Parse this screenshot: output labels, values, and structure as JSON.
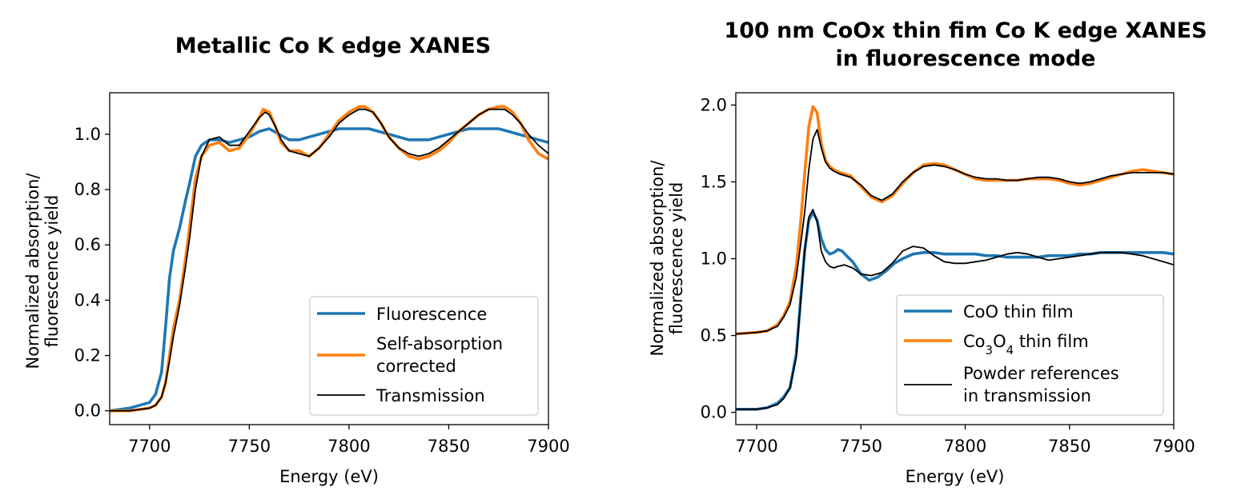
{
  "colors": {
    "fluorescence": "#1f77b4",
    "orange": "#ff7f0e",
    "black": "#000000"
  },
  "chart_data": [
    {
      "type": "line",
      "title_lines": [
        "Metallic Co K edge XANES"
      ],
      "xlabel": "Energy (eV)",
      "ylabel_lines": [
        "Normalized absorption/",
        "fluorescence yield"
      ],
      "xlim": [
        7680,
        7900
      ],
      "ylim": [
        -0.05,
        1.15
      ],
      "xticks": [
        7700,
        7750,
        7800,
        7850,
        7900
      ],
      "xtick_labels": [
        "7700",
        "7750",
        "7800",
        "7850",
        "7900"
      ],
      "yticks": [
        0.0,
        0.2,
        0.4,
        0.6,
        0.8,
        1.0
      ],
      "ytick_labels": [
        "0.0",
        "0.2",
        "0.4",
        "0.6",
        "0.8",
        "1.0"
      ],
      "grid": false,
      "legend_placement": "lower-right",
      "series": [
        {
          "name_lines": [
            "Fluorescence"
          ],
          "color": "#1f77b4",
          "width": "thick",
          "x": [
            7680,
            7690,
            7695,
            7700,
            7703,
            7706,
            7708,
            7710,
            7712,
            7715,
            7718,
            7720,
            7723,
            7726,
            7730,
            7735,
            7740,
            7745,
            7750,
            7755,
            7760,
            7765,
            7770,
            7775,
            7780,
            7785,
            7790,
            7795,
            7800,
            7805,
            7810,
            7815,
            7820,
            7825,
            7830,
            7835,
            7840,
            7845,
            7850,
            7855,
            7860,
            7865,
            7870,
            7875,
            7880,
            7885,
            7890,
            7895,
            7900
          ],
          "y": [
            0.0,
            0.01,
            0.02,
            0.03,
            0.06,
            0.14,
            0.3,
            0.48,
            0.58,
            0.66,
            0.76,
            0.82,
            0.92,
            0.96,
            0.98,
            0.98,
            0.97,
            0.98,
            0.99,
            1.01,
            1.02,
            1.0,
            0.98,
            0.98,
            0.99,
            1.0,
            1.01,
            1.02,
            1.02,
            1.02,
            1.02,
            1.01,
            1.0,
            0.99,
            0.98,
            0.98,
            0.98,
            0.99,
            1.0,
            1.01,
            1.02,
            1.02,
            1.02,
            1.02,
            1.01,
            1.0,
            0.99,
            0.98,
            0.97
          ]
        },
        {
          "name_lines": [
            "Self-absorption",
            "corrected"
          ],
          "color": "#ff7f0e",
          "width": "thick",
          "x": [
            7680,
            7690,
            7695,
            7700,
            7703,
            7706,
            7708,
            7710,
            7712,
            7715,
            7718,
            7720,
            7723,
            7726,
            7730,
            7735,
            7740,
            7745,
            7750,
            7755,
            7757,
            7760,
            7763,
            7766,
            7770,
            7775,
            7780,
            7785,
            7790,
            7795,
            7800,
            7805,
            7808,
            7812,
            7816,
            7820,
            7825,
            7830,
            7835,
            7840,
            7845,
            7850,
            7855,
            7860,
            7865,
            7870,
            7875,
            7878,
            7882,
            7886,
            7890,
            7895,
            7900
          ],
          "y": [
            0.0,
            0.0,
            0.005,
            0.01,
            0.02,
            0.05,
            0.1,
            0.2,
            0.3,
            0.4,
            0.55,
            0.66,
            0.84,
            0.92,
            0.96,
            0.97,
            0.94,
            0.95,
            1.0,
            1.06,
            1.09,
            1.08,
            1.03,
            0.97,
            0.94,
            0.94,
            0.92,
            0.95,
            1.0,
            1.05,
            1.08,
            1.1,
            1.1,
            1.08,
            1.04,
            0.99,
            0.95,
            0.92,
            0.91,
            0.92,
            0.94,
            0.97,
            1.01,
            1.04,
            1.07,
            1.09,
            1.1,
            1.1,
            1.08,
            1.04,
            0.98,
            0.93,
            0.91
          ]
        },
        {
          "name_lines": [
            "Transmission"
          ],
          "color": "#000000",
          "width": "thin",
          "x": [
            7680,
            7690,
            7695,
            7700,
            7703,
            7706,
            7708,
            7710,
            7712,
            7715,
            7718,
            7720,
            7723,
            7726,
            7730,
            7735,
            7740,
            7745,
            7750,
            7755,
            7758,
            7760,
            7763,
            7766,
            7770,
            7775,
            7780,
            7785,
            7790,
            7795,
            7800,
            7805,
            7808,
            7812,
            7816,
            7820,
            7825,
            7830,
            7835,
            7840,
            7845,
            7850,
            7855,
            7860,
            7865,
            7870,
            7875,
            7878,
            7882,
            7886,
            7890,
            7895,
            7900
          ],
          "y": [
            0.0,
            0.0,
            0.005,
            0.01,
            0.02,
            0.05,
            0.1,
            0.18,
            0.27,
            0.38,
            0.52,
            0.62,
            0.8,
            0.92,
            0.98,
            0.99,
            0.96,
            0.96,
            1.01,
            1.06,
            1.08,
            1.07,
            1.03,
            0.98,
            0.94,
            0.93,
            0.92,
            0.95,
            0.99,
            1.04,
            1.07,
            1.09,
            1.09,
            1.08,
            1.04,
            0.99,
            0.95,
            0.93,
            0.92,
            0.93,
            0.95,
            0.98,
            1.01,
            1.04,
            1.07,
            1.09,
            1.09,
            1.09,
            1.07,
            1.04,
            1.0,
            0.96,
            0.93
          ]
        }
      ]
    },
    {
      "type": "line",
      "title_lines": [
        "100 nm CoOx thin fim Co K edge XANES",
        "in fluorescence mode"
      ],
      "xlabel": "Energy (eV)",
      "ylabel_lines": [
        "Normalized absorption/",
        "fluorescence yield"
      ],
      "xlim": [
        7690,
        7900
      ],
      "ylim": [
        -0.08,
        2.08
      ],
      "xticks": [
        7700,
        7750,
        7800,
        7850,
        7900
      ],
      "xtick_labels": [
        "7700",
        "7750",
        "7800",
        "7850",
        "7900"
      ],
      "yticks": [
        0.0,
        0.5,
        1.0,
        1.5,
        2.0
      ],
      "ytick_labels": [
        "0.0",
        "0.5",
        "1.0",
        "1.5",
        "2.0"
      ],
      "grid": false,
      "legend_placement": "lower-right",
      "series": [
        {
          "name_lines": [
            "CoO thin film"
          ],
          "color": "#1f77b4",
          "width": "thick",
          "x": [
            7690,
            7700,
            7705,
            7710,
            7713,
            7716,
            7719,
            7721,
            7723,
            7725,
            7727,
            7729,
            7731,
            7733,
            7735,
            7737,
            7739,
            7741,
            7743,
            7746,
            7750,
            7754,
            7758,
            7762,
            7766,
            7770,
            7775,
            7780,
            7785,
            7790,
            7795,
            7800,
            7805,
            7810,
            7815,
            7820,
            7825,
            7830,
            7835,
            7840,
            7845,
            7850,
            7855,
            7860,
            7865,
            7870,
            7875,
            7880,
            7885,
            7890,
            7895,
            7900
          ],
          "y": [
            0.02,
            0.02,
            0.03,
            0.06,
            0.1,
            0.16,
            0.38,
            0.72,
            1.05,
            1.25,
            1.3,
            1.25,
            1.13,
            1.06,
            1.03,
            1.04,
            1.06,
            1.05,
            1.02,
            0.98,
            0.9,
            0.86,
            0.88,
            0.92,
            0.97,
            1.0,
            1.03,
            1.04,
            1.04,
            1.03,
            1.03,
            1.03,
            1.03,
            1.02,
            1.02,
            1.01,
            1.01,
            1.01,
            1.01,
            1.02,
            1.02,
            1.02,
            1.03,
            1.03,
            1.04,
            1.04,
            1.04,
            1.04,
            1.04,
            1.04,
            1.04,
            1.03
          ]
        },
        {
          "name_lines": [
            "Co",
            "3",
            "O",
            "4",
            " thin film"
          ],
          "color": "#ff7f0e",
          "width": "thick",
          "x": [
            7690,
            7700,
            7705,
            7710,
            7713,
            7716,
            7719,
            7721,
            7723,
            7725,
            7727,
            7729,
            7731,
            7733,
            7735,
            7737,
            7740,
            7745,
            7750,
            7755,
            7760,
            7765,
            7770,
            7775,
            7780,
            7785,
            7790,
            7795,
            7800,
            7805,
            7810,
            7815,
            7820,
            7825,
            7830,
            7835,
            7840,
            7845,
            7850,
            7855,
            7860,
            7865,
            7870,
            7875,
            7880,
            7885,
            7890,
            7895,
            7900
          ],
          "y": [
            0.51,
            0.52,
            0.53,
            0.57,
            0.63,
            0.72,
            0.95,
            1.22,
            1.55,
            1.86,
            1.99,
            1.95,
            1.75,
            1.64,
            1.6,
            1.58,
            1.56,
            1.54,
            1.47,
            1.4,
            1.37,
            1.41,
            1.49,
            1.56,
            1.61,
            1.62,
            1.61,
            1.58,
            1.55,
            1.52,
            1.51,
            1.51,
            1.51,
            1.51,
            1.52,
            1.52,
            1.52,
            1.51,
            1.49,
            1.48,
            1.49,
            1.51,
            1.53,
            1.55,
            1.57,
            1.58,
            1.57,
            1.56,
            1.55
          ]
        },
        {
          "name_lines": [
            "Powder references",
            "in transmission"
          ],
          "color": "#000000",
          "width": "thin",
          "group": "pair",
          "segments": [
            {
              "x": [
                7690,
                7700,
                7705,
                7710,
                7713,
                7716,
                7719,
                7721,
                7723,
                7725,
                7727,
                7729,
                7731,
                7733,
                7735,
                7737,
                7739,
                7742,
                7746,
                7750,
                7755,
                7760,
                7765,
                7770,
                7775,
                7780,
                7785,
                7790,
                7795,
                7800,
                7805,
                7810,
                7815,
                7820,
                7825,
                7830,
                7835,
                7840,
                7845,
                7850,
                7855,
                7860,
                7865,
                7870,
                7875,
                7880,
                7885,
                7890,
                7895,
                7900
              ],
              "y": [
                0.02,
                0.02,
                0.03,
                0.05,
                0.09,
                0.16,
                0.36,
                0.7,
                1.05,
                1.27,
                1.32,
                1.24,
                1.05,
                0.98,
                0.95,
                0.94,
                0.95,
                0.96,
                0.94,
                0.9,
                0.89,
                0.91,
                0.97,
                1.05,
                1.08,
                1.07,
                1.02,
                0.98,
                0.97,
                0.97,
                0.98,
                0.99,
                1.01,
                1.03,
                1.04,
                1.03,
                1.01,
                0.99,
                1.0,
                1.01,
                1.02,
                1.03,
                1.04,
                1.04,
                1.04,
                1.03,
                1.02,
                1.0,
                0.98,
                0.96
              ]
            },
            {
              "x": [
                7690,
                7700,
                7705,
                7710,
                7713,
                7716,
                7719,
                7721,
                7723,
                7725,
                7727,
                7729,
                7731,
                7733,
                7735,
                7737,
                7740,
                7745,
                7750,
                7755,
                7760,
                7765,
                7770,
                7775,
                7780,
                7785,
                7790,
                7795,
                7800,
                7805,
                7810,
                7815,
                7820,
                7825,
                7830,
                7835,
                7840,
                7845,
                7850,
                7855,
                7860,
                7865,
                7870,
                7875,
                7880,
                7885,
                7890,
                7895,
                7900
              ],
              "y": [
                0.51,
                0.52,
                0.53,
                0.56,
                0.62,
                0.7,
                0.88,
                1.08,
                1.3,
                1.58,
                1.78,
                1.84,
                1.72,
                1.63,
                1.59,
                1.57,
                1.55,
                1.53,
                1.48,
                1.41,
                1.38,
                1.42,
                1.5,
                1.56,
                1.6,
                1.61,
                1.6,
                1.58,
                1.55,
                1.53,
                1.52,
                1.52,
                1.51,
                1.51,
                1.52,
                1.53,
                1.53,
                1.52,
                1.5,
                1.49,
                1.5,
                1.52,
                1.54,
                1.55,
                1.56,
                1.56,
                1.56,
                1.56,
                1.55
              ]
            }
          ]
        }
      ]
    }
  ]
}
